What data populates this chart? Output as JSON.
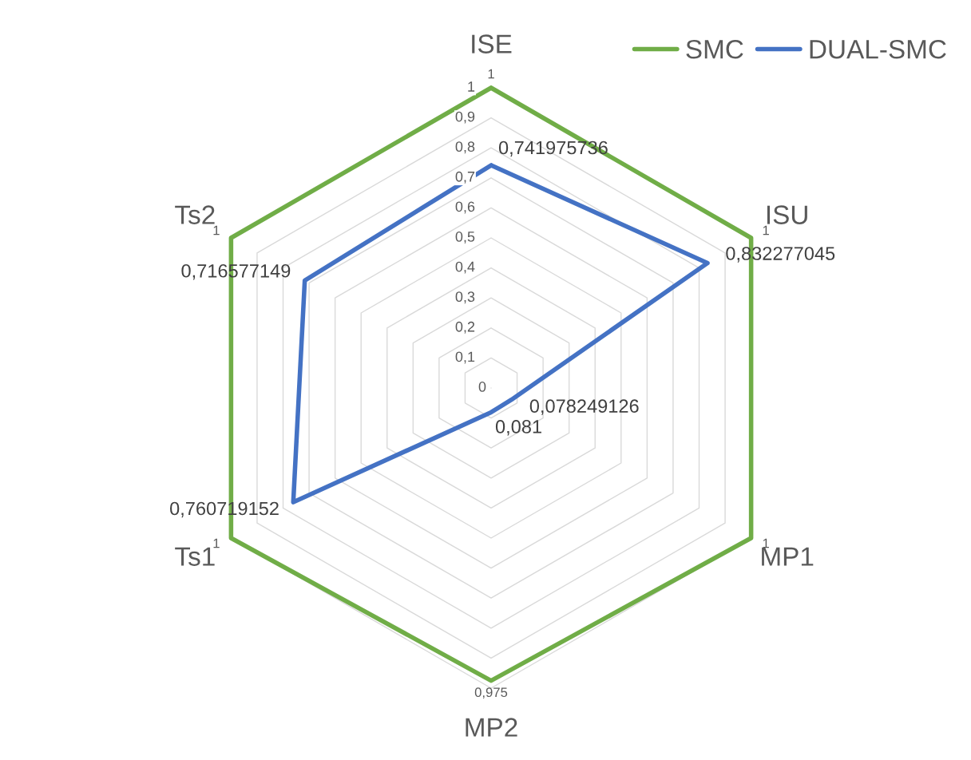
{
  "chart_data": {
    "type": "radar",
    "categories": [
      "ISE",
      "ISU",
      "MP1",
      "MP2",
      "Ts1",
      "Ts2"
    ],
    "series": [
      {
        "name": "SMC",
        "color": "#70ad47",
        "values": [
          1,
          1,
          1,
          0.975,
          1,
          1
        ],
        "value_labels": [
          "1",
          "1",
          "1",
          "0,975",
          "1",
          "1"
        ]
      },
      {
        "name": "DUAL-SMC",
        "color": "#4472c4",
        "values": [
          0.741975736,
          0.832277045,
          0.078249126,
          0.081,
          0.760719152,
          0.716577149
        ],
        "value_labels": [
          "0,741975736",
          "0,832277045",
          "0,078249126",
          "0,081",
          "0,760719152",
          "0,716577149"
        ]
      }
    ],
    "ylim": [
      0,
      1
    ],
    "yticks": [
      {
        "value": 0,
        "label": "0"
      },
      {
        "value": 0.1,
        "label": "0,1"
      },
      {
        "value": 0.2,
        "label": "0,2"
      },
      {
        "value": 0.3,
        "label": "0,3"
      },
      {
        "value": 0.4,
        "label": "0,4"
      },
      {
        "value": 0.5,
        "label": "0,5"
      },
      {
        "value": 0.6,
        "label": "0,6"
      },
      {
        "value": 0.7,
        "label": "0,7"
      },
      {
        "value": 0.8,
        "label": "0,8"
      },
      {
        "value": 0.9,
        "label": "0,9"
      },
      {
        "value": 1,
        "label": "1"
      }
    ],
    "grid": true,
    "legend": "top right",
    "marker": "none",
    "line_style": "solid"
  }
}
